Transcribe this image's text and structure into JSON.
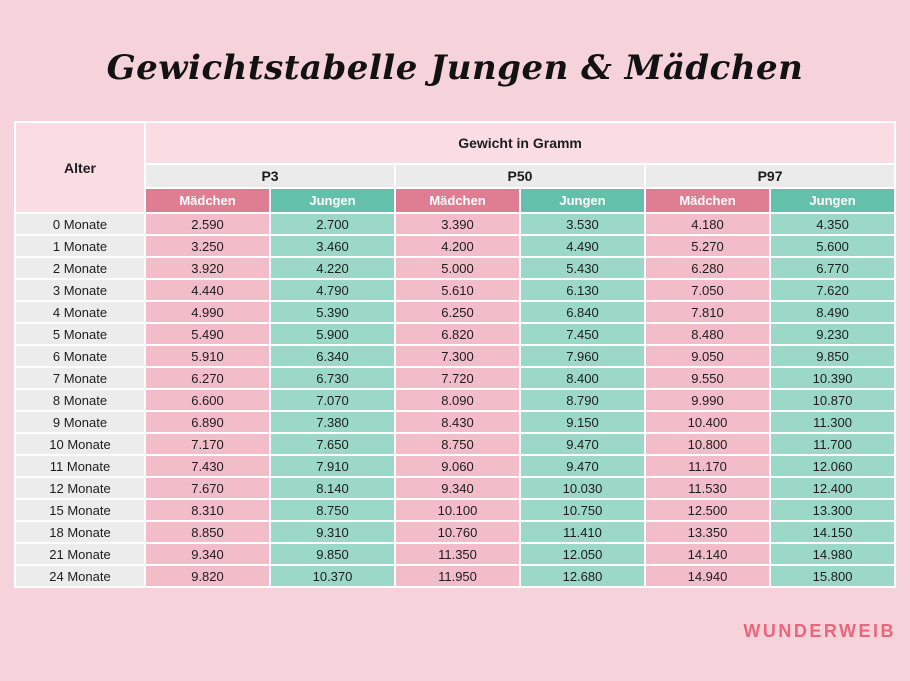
{
  "title": "Gewichtstabelle Jungen & Mädchen",
  "brand": "WUNDERWEIB",
  "colors": {
    "background": "#f6d3db",
    "header_pink": "#f9dde3",
    "percentile_bg": "#ebebeb",
    "girls_header": "#df7e93",
    "boys_header": "#63c0ab",
    "girls_cell": "#f2bdc9",
    "boys_cell": "#9bd8c7",
    "age_cell": "#ececec",
    "text_dark": "#1d1d1d",
    "brand_pink": "#e9677d"
  },
  "table": {
    "age_header": "Alter",
    "group_header": "Gewicht in Gramm",
    "percentiles": [
      "P3",
      "P50",
      "P97"
    ],
    "girls_label": "Mädchen",
    "boys_label": "Jungen"
  },
  "chart_data": {
    "type": "table",
    "title": "Gewichtstabelle Jungen & Mädchen",
    "group_header": "Gewicht in Gramm",
    "columns": [
      "Alter",
      "P3 Mädchen",
      "P3 Jungen",
      "P50 Mädchen",
      "P50 Jungen",
      "P97 Mädchen",
      "P97 Jungen"
    ],
    "rows": [
      [
        "0 Monate",
        "2.590",
        "2.700",
        "3.390",
        "3.530",
        "4.180",
        "4.350"
      ],
      [
        "1 Monate",
        "3.250",
        "3.460",
        "4.200",
        "4.490",
        "5.270",
        "5.600"
      ],
      [
        "2 Monate",
        "3.920",
        "4.220",
        "5.000",
        "5.430",
        "6.280",
        "6.770"
      ],
      [
        "3 Monate",
        "4.440",
        "4.790",
        "5.610",
        "6.130",
        "7.050",
        "7.620"
      ],
      [
        "4 Monate",
        "4.990",
        "5.390",
        "6.250",
        "6.840",
        "7.810",
        "8.490"
      ],
      [
        "5 Monate",
        "5.490",
        "5.900",
        "6.820",
        "7.450",
        "8.480",
        "9.230"
      ],
      [
        "6 Monate",
        "5.910",
        "6.340",
        "7.300",
        "7.960",
        "9.050",
        "9.850"
      ],
      [
        "7 Monate",
        "6.270",
        "6.730",
        "7.720",
        "8.400",
        "9.550",
        "10.390"
      ],
      [
        "8 Monate",
        "6.600",
        "7.070",
        "8.090",
        "8.790",
        "9.990",
        "10.870"
      ],
      [
        "9 Monate",
        "6.890",
        "7.380",
        "8.430",
        "9.150",
        "10.400",
        "11.300"
      ],
      [
        "10 Monate",
        "7.170",
        "7.650",
        "8.750",
        "9.470",
        "10.800",
        "11.700"
      ],
      [
        "11 Monate",
        "7.430",
        "7.910",
        "9.060",
        "9.470",
        "11.170",
        "12.060"
      ],
      [
        "12 Monate",
        "7.670",
        "8.140",
        "9.340",
        "10.030",
        "11.530",
        "12.400"
      ],
      [
        "15 Monate",
        "8.310",
        "8.750",
        "10.100",
        "10.750",
        "12.500",
        "13.300"
      ],
      [
        "18 Monate",
        "8.850",
        "9.310",
        "10.760",
        "11.410",
        "13.350",
        "14.150"
      ],
      [
        "21 Monate",
        "9.340",
        "9.850",
        "11.350",
        "12.050",
        "14.140",
        "14.980"
      ],
      [
        "24 Monate",
        "9.820",
        "10.370",
        "11.950",
        "12.680",
        "14.940",
        "15.800"
      ]
    ]
  }
}
